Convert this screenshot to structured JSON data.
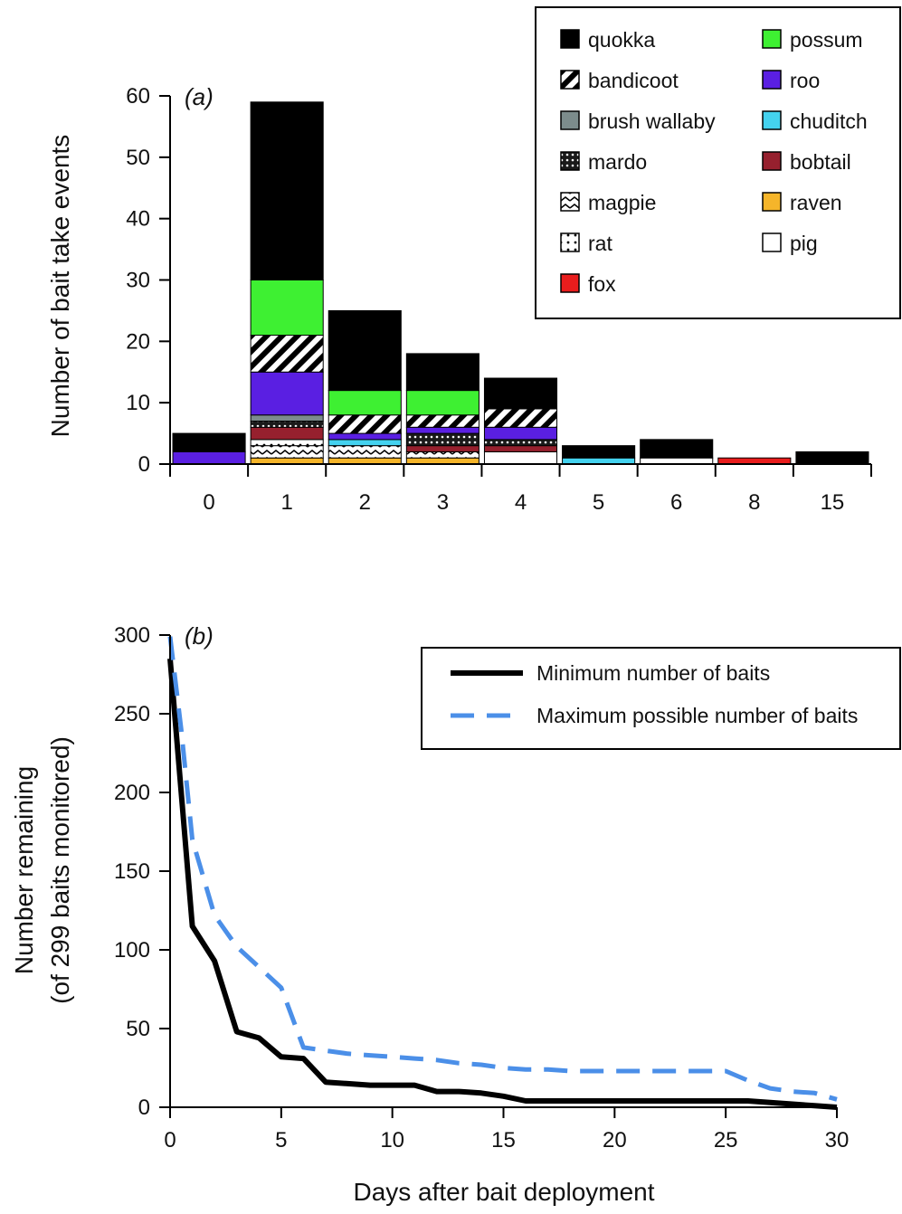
{
  "chart_data": [
    {
      "panel": "(a)",
      "type": "bar",
      "stacked": true,
      "ylabel": "Number of bait take events",
      "xlabel": "",
      "ylim": [
        0,
        60
      ],
      "yticks": [
        0,
        10,
        20,
        30,
        40,
        50,
        60
      ],
      "categories": [
        "0",
        "1",
        "2",
        "3",
        "4",
        "5",
        "6",
        "8",
        "15"
      ],
      "series": [
        {
          "name": "raven",
          "color": "#f5b52a",
          "pattern": "solid",
          "values": [
            0,
            1,
            1,
            1,
            0,
            0,
            0,
            0,
            0
          ]
        },
        {
          "name": "magpie",
          "color": "#ffffff",
          "pattern": "magpie",
          "values": [
            0,
            2,
            2,
            1,
            0,
            0,
            0,
            0,
            0
          ]
        },
        {
          "name": "rat",
          "color": "#ffffff",
          "pattern": "rat",
          "values": [
            0,
            1,
            0,
            0,
            0,
            0,
            0,
            0,
            0
          ]
        },
        {
          "name": "pig",
          "color": "#ffffff",
          "pattern": "solid",
          "values": [
            0,
            0,
            0,
            0,
            2,
            0,
            1,
            0,
            0
          ]
        },
        {
          "name": "chuditch",
          "color": "#44d2ef",
          "pattern": "solid",
          "values": [
            0,
            0,
            1,
            0,
            0,
            1,
            0,
            0,
            0
          ]
        },
        {
          "name": "fox",
          "color": "#e81d1d",
          "pattern": "solid",
          "values": [
            0,
            0,
            0,
            0,
            0,
            0,
            0,
            1,
            0
          ]
        },
        {
          "name": "bobtail",
          "color": "#96202e",
          "pattern": "solid",
          "values": [
            0,
            2,
            0,
            1,
            1,
            0,
            0,
            0,
            0
          ]
        },
        {
          "name": "mardo",
          "color": "#1a1a1a",
          "pattern": "mardo",
          "values": [
            0,
            1,
            0,
            2,
            1,
            0,
            0,
            0,
            0
          ]
        },
        {
          "name": "brush wallaby",
          "color": "#7c8c8c",
          "pattern": "solid",
          "values": [
            0,
            1,
            0,
            0,
            0,
            0,
            0,
            0,
            0
          ]
        },
        {
          "name": "roo",
          "color": "#5a1fe2",
          "pattern": "solid",
          "values": [
            2,
            7,
            1,
            1,
            2,
            0,
            0,
            0,
            0
          ]
        },
        {
          "name": "bandicoot",
          "color": "#ffffff",
          "pattern": "bandicoot",
          "values": [
            0,
            6,
            3,
            2,
            3,
            0,
            0,
            0,
            0
          ]
        },
        {
          "name": "possum",
          "color": "#3ef032",
          "pattern": "solid",
          "values": [
            0,
            9,
            4,
            4,
            0,
            0,
            0,
            0,
            0
          ]
        },
        {
          "name": "quokka",
          "color": "#000000",
          "pattern": "solid",
          "values": [
            3,
            29,
            13,
            6,
            5,
            2,
            3,
            0,
            2
          ]
        }
      ],
      "legend": {
        "placement": "top-right",
        "left_column": [
          "quokka",
          "bandicoot",
          "brush wallaby",
          "mardo",
          "magpie",
          "rat",
          "fox"
        ],
        "right_column": [
          "possum",
          "roo",
          "chuditch",
          "bobtail",
          "raven",
          "pig"
        ]
      }
    },
    {
      "panel": "(b)",
      "type": "line",
      "xlabel": "Days after bait deployment",
      "ylabel": "Number remaining",
      "ylabel_line2": "(of 299 baits monitored)",
      "xlim": [
        0,
        30
      ],
      "ylim": [
        0,
        300
      ],
      "xticks": [
        0,
        5,
        10,
        15,
        20,
        25,
        30
      ],
      "yticks": [
        0,
        50,
        100,
        150,
        200,
        250,
        300
      ],
      "series": [
        {
          "name": "Minimum number of baits",
          "color": "#000000",
          "style": "solid",
          "x": [
            0,
            0.5,
            1,
            2,
            3,
            4,
            5,
            6,
            7,
            8,
            9,
            10,
            11,
            12,
            13,
            14,
            15,
            16,
            17,
            18,
            19,
            20,
            21,
            22,
            23,
            24,
            25,
            26,
            27,
            28,
            29,
            30
          ],
          "y": [
            285,
            200,
            115,
            93,
            48,
            44,
            32,
            31,
            16,
            15,
            14,
            14,
            14,
            10,
            10,
            9,
            7,
            4,
            4,
            4,
            4,
            4,
            4,
            4,
            4,
            4,
            4,
            4,
            3,
            2,
            1,
            0
          ]
        },
        {
          "name": "Maximum possible number of baits",
          "color": "#4b8fe8",
          "style": "dashed",
          "x": [
            0,
            0.5,
            1,
            2,
            3,
            4,
            5,
            6,
            7,
            8,
            9,
            10,
            11,
            12,
            13,
            14,
            15,
            16,
            17,
            18,
            19,
            20,
            21,
            22,
            23,
            24,
            25,
            26,
            27,
            28,
            29,
            30
          ],
          "y": [
            299,
            240,
            170,
            122,
            102,
            89,
            76,
            38,
            36,
            34,
            33,
            32,
            31,
            30,
            28,
            27,
            25,
            24,
            24,
            23,
            23,
            23,
            23,
            23,
            23,
            23,
            23,
            17,
            12,
            10,
            9,
            5
          ]
        }
      ],
      "legend": {
        "placement": "top-right"
      }
    }
  ]
}
